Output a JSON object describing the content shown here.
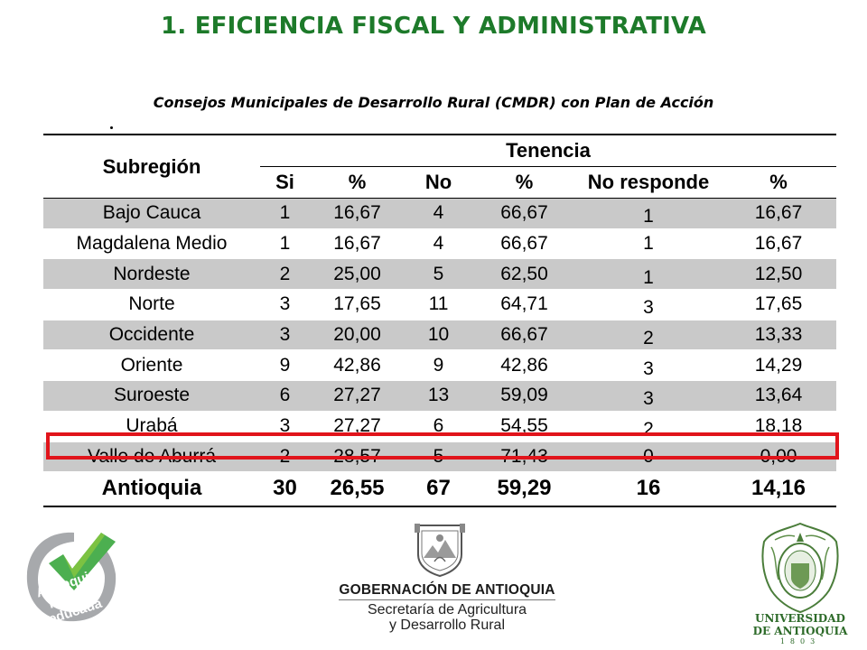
{
  "title": "1. EFICIENCIA FISCAL Y ADMINISTRATIVA",
  "subtitle": "Consejos Municipales de Desarrollo Rural (CMDR)  con Plan  de Acción",
  "table": {
    "col_subregion": "Subregión",
    "group_header": "Tenencia",
    "columns": [
      "Si",
      "%",
      "No",
      "%",
      "No responde",
      "%"
    ],
    "rows": [
      {
        "name": "Bajo Cauca",
        "si": "1",
        "si_pct": "16,67",
        "no": "4",
        "no_pct": "66,67",
        "nr": "1",
        "nr_pct": "16,67",
        "shaded": true
      },
      {
        "name": "Magdalena Medio",
        "si": "1",
        "si_pct": "16,67",
        "no": "4",
        "no_pct": "66,67",
        "nr": "1",
        "nr_pct": "16,67",
        "shaded": false
      },
      {
        "name": "Nordeste",
        "si": "2",
        "si_pct": "25,00",
        "no": "5",
        "no_pct": "62,50",
        "nr": "1",
        "nr_pct": "12,50",
        "shaded": true
      },
      {
        "name": "Norte",
        "si": "3",
        "si_pct": "17,65",
        "no": "11",
        "no_pct": "64,71",
        "nr": "3",
        "nr_pct": "17,65",
        "shaded": false
      },
      {
        "name": "Occidente",
        "si": "3",
        "si_pct": "20,00",
        "no": "10",
        "no_pct": "66,67",
        "nr": "2",
        "nr_pct": "13,33",
        "shaded": true
      },
      {
        "name": "Oriente",
        "si": "9",
        "si_pct": "42,86",
        "no": "9",
        "no_pct": "42,86",
        "nr": "3",
        "nr_pct": "14,29",
        "shaded": false
      },
      {
        "name": "Suroeste",
        "si": "6",
        "si_pct": "27,27",
        "no": "13",
        "no_pct": "59,09",
        "nr": "3",
        "nr_pct": "13,64",
        "shaded": true
      },
      {
        "name": "Urabá",
        "si": "3",
        "si_pct": "27,27",
        "no": "6",
        "no_pct": "54,55",
        "nr": "2",
        "nr_pct": "18,18",
        "shaded": false
      },
      {
        "name": "Valle de Aburrá",
        "si": "2",
        "si_pct": "28,57",
        "no": "5",
        "no_pct": "71,43",
        "nr": "0",
        "nr_pct": "0,00",
        "shaded": true,
        "highlighted": true
      }
    ],
    "total": {
      "name": "Antioquia",
      "si": "30",
      "si_pct": "26,55",
      "no": "67",
      "no_pct": "59,29",
      "nr": "16",
      "nr_pct": "14,16"
    }
  },
  "colors": {
    "title": "#1d7a2a",
    "row_shade": "#c9c9c9",
    "highlight_border": "#e1141b"
  },
  "logos": {
    "antioquia_mas_educada": {
      "line1": "Antioquia",
      "line2": "la más",
      "line3": "educada"
    },
    "gobernacion": {
      "title": "GOBERNACIÓN DE ANTIOQUIA",
      "sub1": "Secretaría de Agricultura",
      "sub2": "y Desarrollo Rural"
    },
    "universidad": {
      "line1": "UNIVERSIDAD",
      "line2": "DE ANTIOQUIA",
      "year": "1803"
    }
  }
}
